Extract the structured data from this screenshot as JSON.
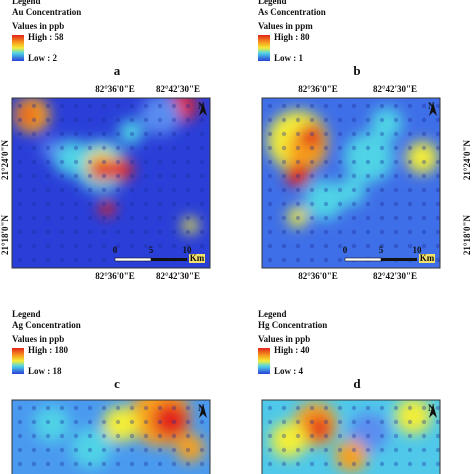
{
  "panels": [
    {
      "label": "a",
      "legend": "Legend",
      "concentration": "Au Concentration",
      "unit": "Values in ppb",
      "high": "High : 58",
      "low": "Low : 2",
      "top_lon": [
        "82°36'0\"E",
        "82°42'30\"E"
      ],
      "bottom_lon": [
        "82°36'0\"E",
        "82°42'30\"E"
      ],
      "lat": [
        "21°24'0\"N",
        "21°18'0\"N"
      ],
      "scale": [
        "0",
        "5",
        "10",
        "Km"
      ],
      "north": "N"
    },
    {
      "label": "b",
      "legend": "Legend",
      "concentration": "As Concentration",
      "unit": "Values in ppm",
      "high": "High : 80",
      "low": "Low : 1",
      "top_lon": [
        "82°36'0\"E",
        "82°42'30\"E"
      ],
      "bottom_lon": [
        "82°36'0\"E",
        "82°42'30\"E"
      ],
      "lat": [
        "21°24'0\"N",
        "21°18'0\"N"
      ],
      "scale": [
        "0",
        "5",
        "10",
        "Km"
      ],
      "north": "N"
    },
    {
      "label": "c",
      "legend": "Legend",
      "concentration": "Ag Concentration",
      "unit": "Values in ppb",
      "high": "High : 180",
      "low": "Low : 18",
      "north": "N"
    },
    {
      "label": "d",
      "legend": "Legend",
      "concentration": "Hg Concentration",
      "unit": "Values in ppb",
      "high": "High : 40",
      "low": "Low : 4",
      "north": "N"
    }
  ]
}
